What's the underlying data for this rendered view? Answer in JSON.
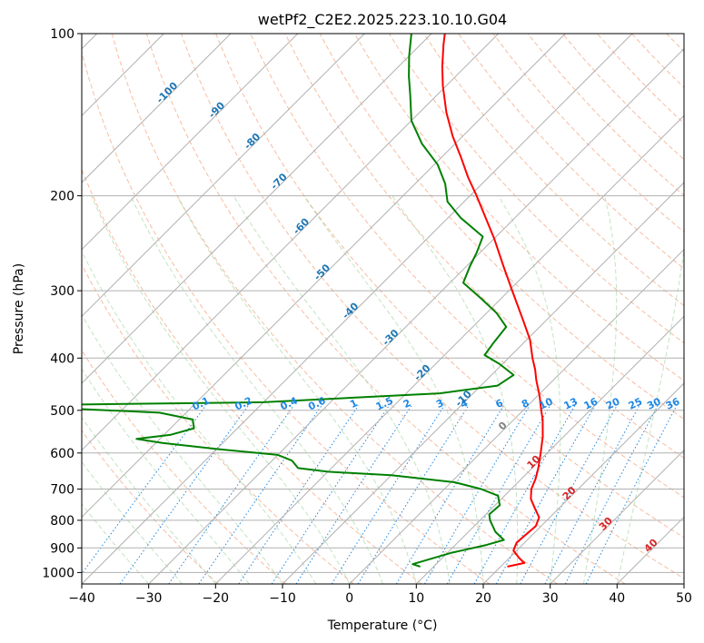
{
  "chart_data": {
    "type": "line",
    "title": "wetPf2_C2E2.2025.223.10.10.G04",
    "xlabel": "Temperature (°C)",
    "ylabel": "Pressure (hPa)",
    "xlim": [
      -40,
      50
    ],
    "ylim": [
      1050,
      100
    ],
    "y_scale": "log",
    "grid": true,
    "x_ticks": [
      -40,
      -30,
      -20,
      -10,
      0,
      10,
      20,
      30,
      40,
      50
    ],
    "x_tick_labels": [
      "−40",
      "−30",
      "−20",
      "−10",
      "0",
      "10",
      "20",
      "30",
      "40",
      "50"
    ],
    "y_ticks": [
      100,
      200,
      300,
      400,
      500,
      600,
      700,
      800,
      900,
      1000
    ],
    "y_tick_labels": [
      "100",
      "200",
      "300",
      "400",
      "500",
      "600",
      "700",
      "800",
      "900",
      "1000"
    ],
    "series": [
      {
        "role": "temperature",
        "color": "#ff0000",
        "points": [
          {
            "p": 975,
            "t": 21.0
          },
          {
            "p": 960,
            "t": 23.0
          },
          {
            "p": 940,
            "t": 21.5
          },
          {
            "p": 910,
            "t": 19.5
          },
          {
            "p": 880,
            "t": 18.8
          },
          {
            "p": 850,
            "t": 19.0
          },
          {
            "p": 820,
            "t": 19.2
          },
          {
            "p": 790,
            "t": 18.4
          },
          {
            "p": 760,
            "t": 16.4
          },
          {
            "p": 730,
            "t": 14.4
          },
          {
            "p": 700,
            "t": 13.0
          },
          {
            "p": 670,
            "t": 12.1
          },
          {
            "p": 640,
            "t": 10.9
          },
          {
            "p": 600,
            "t": 9.0
          },
          {
            "p": 560,
            "t": 6.9
          },
          {
            "p": 520,
            "t": 4.3
          },
          {
            "p": 500,
            "t": 2.7
          },
          {
            "p": 470,
            "t": 0.3
          },
          {
            "p": 440,
            "t": -2.5
          },
          {
            "p": 420,
            "t": -4.3
          },
          {
            "p": 400,
            "t": -6.4
          },
          {
            "p": 370,
            "t": -9.5
          },
          {
            "p": 340,
            "t": -13.5
          },
          {
            "p": 300,
            "t": -19.5
          },
          {
            "p": 270,
            "t": -24.5
          },
          {
            "p": 240,
            "t": -30.0
          },
          {
            "p": 220,
            "t": -34.3
          },
          {
            "p": 200,
            "t": -39.0
          },
          {
            "p": 185,
            "t": -43.0
          },
          {
            "p": 170,
            "t": -47.0
          },
          {
            "p": 155,
            "t": -51.5
          },
          {
            "p": 140,
            "t": -56.0
          },
          {
            "p": 125,
            "t": -60.5
          },
          {
            "p": 115,
            "t": -63.5
          },
          {
            "p": 105,
            "t": -66.5
          },
          {
            "p": 100,
            "t": -68.0
          }
        ]
      },
      {
        "role": "dewpoint",
        "color": "#008000",
        "points": [
          {
            "p": 975,
            "t": 8.0
          },
          {
            "p": 965,
            "t": 6.5
          },
          {
            "p": 950,
            "t": 7.8
          },
          {
            "p": 920,
            "t": 10.5
          },
          {
            "p": 890,
            "t": 14.5
          },
          {
            "p": 870,
            "t": 16.5
          },
          {
            "p": 840,
            "t": 14.0
          },
          {
            "p": 800,
            "t": 11.5
          },
          {
            "p": 780,
            "t": 10.5
          },
          {
            "p": 750,
            "t": 10.7
          },
          {
            "p": 720,
            "t": 9.0
          },
          {
            "p": 700,
            "t": 5.5
          },
          {
            "p": 680,
            "t": 0.5
          },
          {
            "p": 660,
            "t": -10.0
          },
          {
            "p": 650,
            "t": -20.0
          },
          {
            "p": 640,
            "t": -25.0
          },
          {
            "p": 620,
            "t": -27.0
          },
          {
            "p": 605,
            "t": -30.0
          },
          {
            "p": 590,
            "t": -40.0
          },
          {
            "p": 575,
            "t": -49.0
          },
          {
            "p": 565,
            "t": -53.5
          },
          {
            "p": 555,
            "t": -49.0
          },
          {
            "p": 540,
            "t": -46.5
          },
          {
            "p": 520,
            "t": -48.0
          },
          {
            "p": 505,
            "t": -54.0
          },
          {
            "p": 495,
            "t": -70.0
          },
          {
            "p": 489,
            "t": -75.0
          },
          {
            "p": 483,
            "t": -40.0
          },
          {
            "p": 465,
            "t": -15.0
          },
          {
            "p": 450,
            "t": -7.5
          },
          {
            "p": 430,
            "t": -6.7
          },
          {
            "p": 410,
            "t": -10.5
          },
          {
            "p": 395,
            "t": -14.0
          },
          {
            "p": 375,
            "t": -14.5
          },
          {
            "p": 350,
            "t": -15.0
          },
          {
            "p": 330,
            "t": -18.5
          },
          {
            "p": 310,
            "t": -23.0
          },
          {
            "p": 290,
            "t": -28.0
          },
          {
            "p": 270,
            "t": -29.5
          },
          {
            "p": 255,
            "t": -30.5
          },
          {
            "p": 238,
            "t": -32.0
          },
          {
            "p": 220,
            "t": -38.0
          },
          {
            "p": 205,
            "t": -42.5
          },
          {
            "p": 190,
            "t": -45.5
          },
          {
            "p": 175,
            "t": -49.5
          },
          {
            "p": 160,
            "t": -55.0
          },
          {
            "p": 145,
            "t": -60.0
          },
          {
            "p": 130,
            "t": -64.0
          },
          {
            "p": 120,
            "t": -67.0
          },
          {
            "p": 110,
            "t": -70.0
          },
          {
            "p": 100,
            "t": -73.0
          }
        ]
      }
    ],
    "mixing_ratio_lines": [
      0.1,
      0.2,
      0.4,
      0.6,
      1,
      1.5,
      2,
      3,
      4,
      6,
      8,
      10,
      13,
      16,
      20,
      25,
      30,
      36
    ],
    "mixing_ratio_labels": [
      "0.1",
      "0.2",
      "0.4",
      "0.6",
      "1",
      "1.5",
      "2",
      "3",
      "4",
      "6",
      "8",
      "10",
      "13",
      "16",
      "20",
      "25",
      "30",
      "36"
    ],
    "isotherm_labels": [
      {
        "value": -100,
        "text": "-100",
        "label_p": 130
      },
      {
        "value": -90,
        "text": "-90",
        "label_p": 140
      },
      {
        "value": -80,
        "text": "-80",
        "label_p": 160
      },
      {
        "value": -70,
        "text": "-70",
        "label_p": 190
      },
      {
        "value": -60,
        "text": "-60",
        "label_p": 230
      },
      {
        "value": -50,
        "text": "-50",
        "label_p": 280
      },
      {
        "value": -40,
        "text": "-40",
        "label_p": 330
      },
      {
        "value": -30,
        "text": "-30",
        "label_p": 370
      },
      {
        "value": -20,
        "text": "-20",
        "label_p": 430
      },
      {
        "value": -10,
        "text": "-10",
        "label_p": 480
      },
      {
        "value": 0,
        "text": "0",
        "label_p": 540
      },
      {
        "value": 10,
        "text": "10",
        "label_p": 630
      },
      {
        "value": 20,
        "text": "20",
        "label_p": 720
      },
      {
        "value": 30,
        "text": "30",
        "label_p": 820
      },
      {
        "value": 40,
        "text": "40",
        "label_p": 900
      }
    ],
    "colors": {
      "temperature": "#ff0000",
      "dewpoint": "#008000",
      "isotherm_cold": "#1f77b4",
      "isotherm_warm": "#d62728",
      "mixing_ratio": "#1e88e5",
      "dry_adiabat": "#f4a582",
      "moist_adiabat": "#a6d9a6",
      "grid": "#b0b0b0"
    }
  }
}
